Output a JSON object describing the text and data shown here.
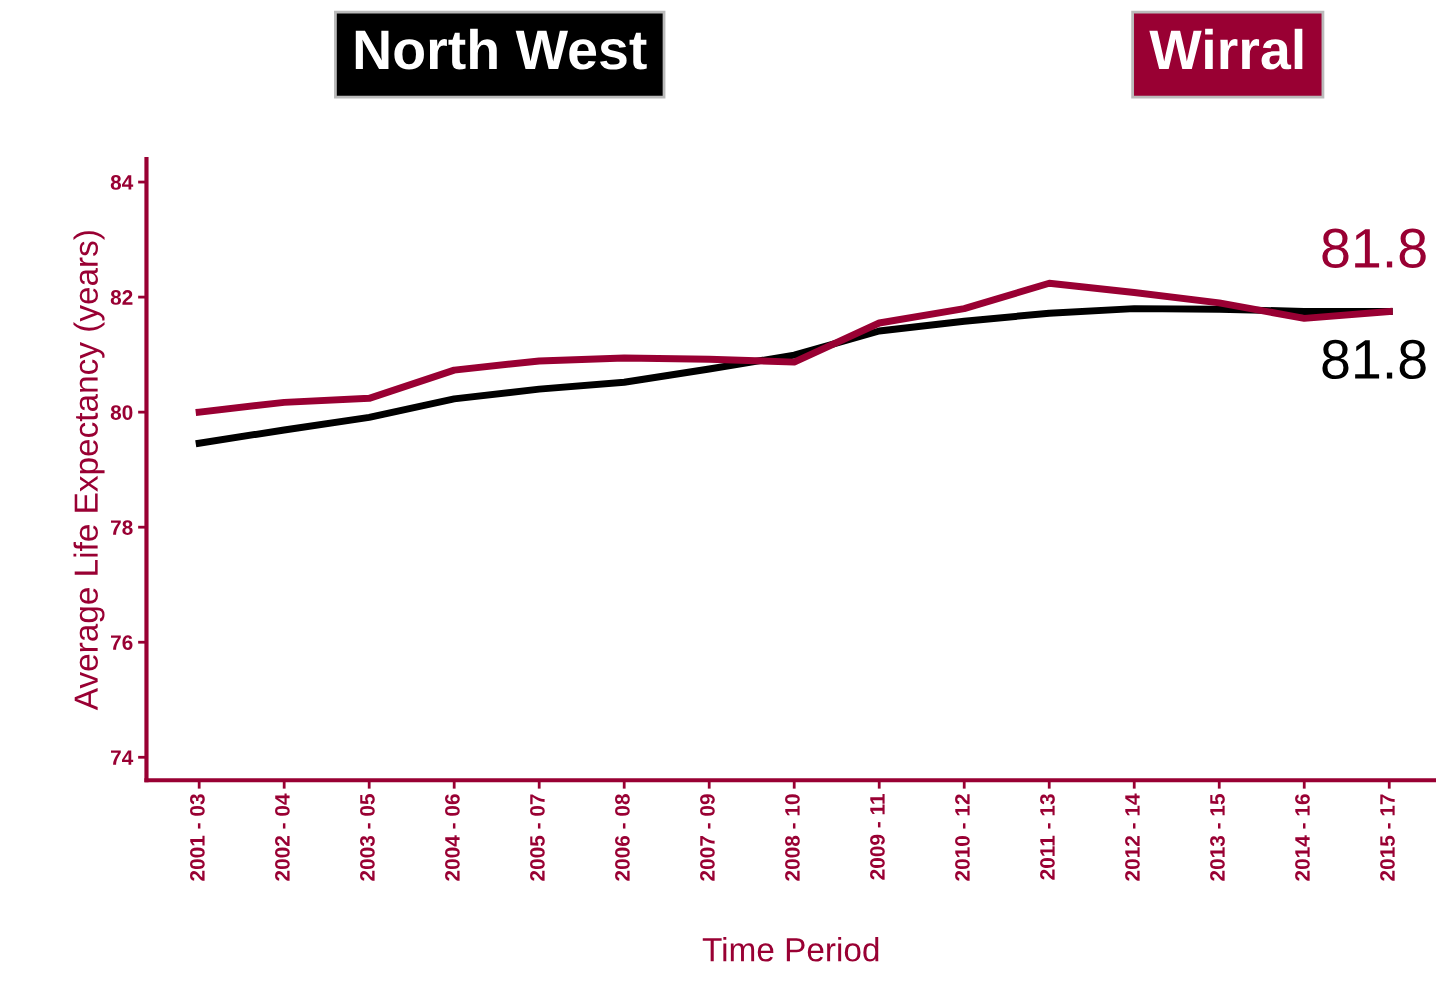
{
  "chart_data": {
    "type": "line",
    "xlabel": "Time Period",
    "ylabel": "Average Life Expectancy (years)",
    "categories": [
      "2001 - 03",
      "2002 - 04",
      "2003 - 05",
      "2004 - 06",
      "2005 - 07",
      "2006 - 08",
      "2007 - 09",
      "2008 - 10",
      "2009 - 11",
      "2010 - 12",
      "2011 - 13",
      "2012 - 14",
      "2013 - 15",
      "2014 - 16",
      "2015 - 17"
    ],
    "series": [
      {
        "name": "North West",
        "color": "#000000",
        "values": [
          79.46,
          79.69,
          79.91,
          80.23,
          80.4,
          80.52,
          80.75,
          80.99,
          81.41,
          81.58,
          81.72,
          81.8,
          81.79,
          81.75,
          81.75
        ]
      },
      {
        "name": "Wirral",
        "color": "#990033",
        "values": [
          80.0,
          80.17,
          80.24,
          80.73,
          80.89,
          80.94,
          80.92,
          80.87,
          81.55,
          81.8,
          82.24,
          82.08,
          81.9,
          81.63,
          81.75
        ]
      }
    ],
    "annotations": [
      {
        "text": "81.8",
        "x": "2015 - 17",
        "y": 81.8
      },
      {
        "text": "81.8",
        "x": "2015 - 17",
        "y": 81.8
      }
    ],
    "ylim": [
      73.6,
      84.4
    ],
    "yticks": [
      74,
      76,
      78,
      80,
      82,
      84
    ],
    "grid": false,
    "legend": "top",
    "marker": "none",
    "line_style": "solid"
  }
}
